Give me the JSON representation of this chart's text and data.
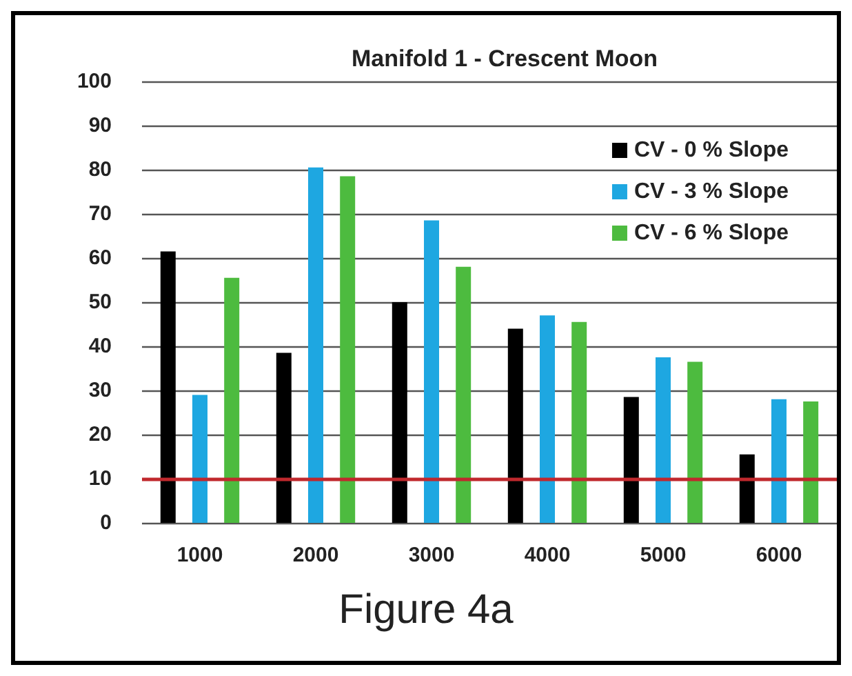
{
  "chart_data": {
    "type": "bar",
    "title": "Manifold 1 - Crescent Moon",
    "categories": [
      "1000",
      "2000",
      "3000",
      "4000",
      "5000",
      "6000"
    ],
    "series": [
      {
        "name": "CV - 0 % Slope",
        "color": "#000000",
        "values": [
          61.5,
          38.5,
          50,
          44,
          28.5,
          15.5
        ]
      },
      {
        "name": "CV - 3 % Slope",
        "color": "#1ea7e1",
        "values": [
          29,
          80.5,
          68.5,
          47,
          37.5,
          28
        ]
      },
      {
        "name": "CV - 6 % Slope",
        "color": "#4dbb3f",
        "values": [
          55.5,
          78.5,
          58,
          45.5,
          36.5,
          27.5
        ]
      }
    ],
    "ylim": [
      0,
      100
    ],
    "yticks": [
      0,
      10,
      20,
      30,
      40,
      50,
      60,
      70,
      80,
      90,
      100
    ],
    "grid": "y",
    "legend": "top right",
    "ref_lines": [
      {
        "axis": "y",
        "value": 10,
        "color": "#c0282d",
        "line_style": "solid"
      }
    ],
    "annotations": [
      "Figure 4a"
    ]
  }
}
